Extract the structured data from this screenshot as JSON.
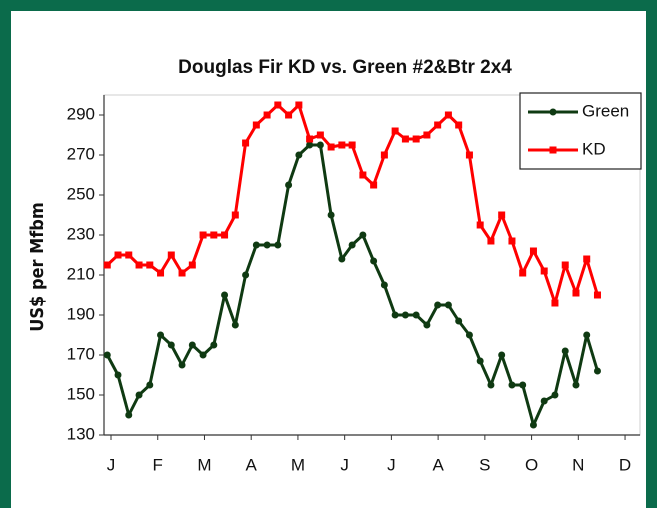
{
  "chart_data": {
    "type": "line",
    "title": "Douglas Fir KD vs. Green #2&Btr 2x4",
    "y_label": "US$ per Mfbm",
    "x": [
      -0.08,
      0.15,
      0.38,
      0.6,
      0.83,
      1.06,
      1.29,
      1.52,
      1.74,
      1.97,
      2.2,
      2.43,
      2.66,
      2.88,
      3.11,
      3.34,
      3.57,
      3.8,
      4.02,
      4.25,
      4.48,
      4.71,
      4.94,
      5.16,
      5.39,
      5.62,
      5.85,
      6.08,
      6.3,
      6.53,
      6.76,
      6.99,
      7.22,
      7.44,
      7.67,
      7.9,
      8.13,
      8.36,
      8.58,
      8.81,
      9.04,
      9.27,
      9.5,
      9.72,
      9.95,
      10.18,
      10.41
    ],
    "series": [
      {
        "name": "Green",
        "color": "#0f3a12",
        "marker": "circle",
        "values": [
          170,
          160,
          140,
          150,
          155,
          180,
          175,
          165,
          175,
          170,
          175,
          200,
          185,
          210,
          225,
          225,
          225,
          255,
          270,
          275,
          275,
          240,
          218,
          225,
          230,
          217,
          205,
          190,
          190,
          190,
          185,
          195,
          195,
          187,
          180,
          167,
          155,
          170,
          155,
          155,
          135,
          147,
          150,
          172,
          155,
          180,
          162
        ]
      },
      {
        "name": "KD",
        "color": "#ff0000",
        "marker": "square",
        "values": [
          215,
          220,
          220,
          215,
          215,
          211,
          220,
          211,
          215,
          230,
          230,
          230,
          240,
          276,
          285,
          290,
          295,
          290,
          295,
          278,
          280,
          274,
          275,
          275,
          260,
          255,
          270,
          282,
          278,
          278,
          280,
          285,
          290,
          285,
          270,
          235,
          227,
          240,
          227,
          211,
          222,
          212,
          196,
          215,
          201,
          218,
          200
        ]
      }
    ],
    "xlim": [
      -0.15,
      11.32
    ],
    "xticks": [
      {
        "value": 0,
        "label": "J"
      },
      {
        "value": 1,
        "label": "F"
      },
      {
        "value": 2,
        "label": "M"
      },
      {
        "value": 3,
        "label": "A"
      },
      {
        "value": 4,
        "label": "M"
      },
      {
        "value": 5,
        "label": "J"
      },
      {
        "value": 6,
        "label": "J"
      },
      {
        "value": 7,
        "label": "A"
      },
      {
        "value": 8,
        "label": "S"
      },
      {
        "value": 9,
        "label": "O"
      },
      {
        "value": 10,
        "label": "N"
      },
      {
        "value": 11,
        "label": "D"
      }
    ],
    "ylim": [
      130,
      300
    ],
    "yticks": [
      130,
      150,
      170,
      190,
      210,
      230,
      250,
      270,
      290
    ],
    "grid": false,
    "legend": "top-right"
  }
}
